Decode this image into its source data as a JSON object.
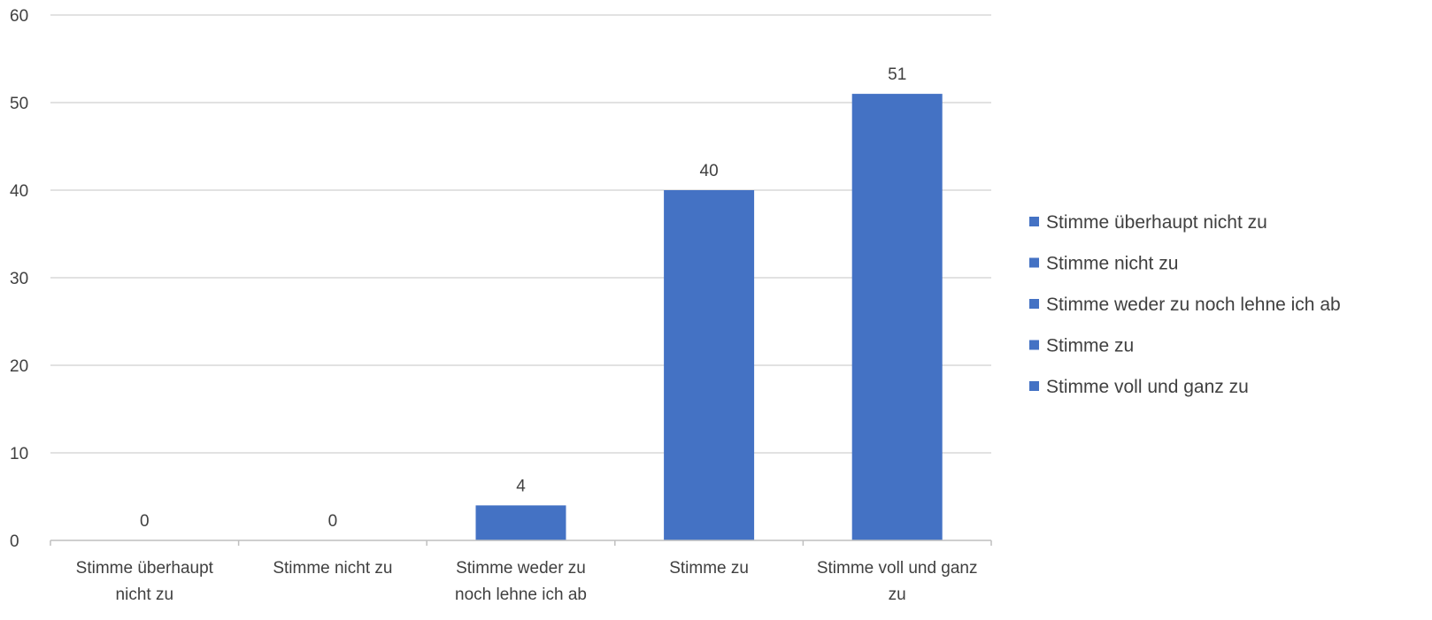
{
  "chart_data": {
    "type": "bar",
    "title": "",
    "xlabel": "",
    "ylabel": "",
    "categories": [
      [
        "Stimme überhaupt",
        "nicht zu"
      ],
      [
        "Stimme nicht zu"
      ],
      [
        "Stimme weder zu",
        "noch lehne ich ab"
      ],
      [
        "Stimme zu"
      ],
      [
        "Stimme voll und ganz",
        "zu"
      ]
    ],
    "values": [
      0,
      0,
      4,
      40,
      51
    ],
    "ylim": [
      0,
      60
    ],
    "yticks": [
      0,
      10,
      20,
      30,
      40,
      50,
      60
    ],
    "grid": true,
    "data_labels": true,
    "legend": {
      "position": "right",
      "entries": [
        "Stimme überhaupt nicht zu",
        "Stimme nicht zu",
        "Stimme weder zu noch lehne ich ab",
        "Stimme zu",
        "Stimme voll und ganz zu"
      ]
    },
    "colors": {
      "bar": "#4472C4",
      "grid": "#D9D9D9",
      "axis": "#BFBFBF",
      "text": "#404040"
    }
  }
}
